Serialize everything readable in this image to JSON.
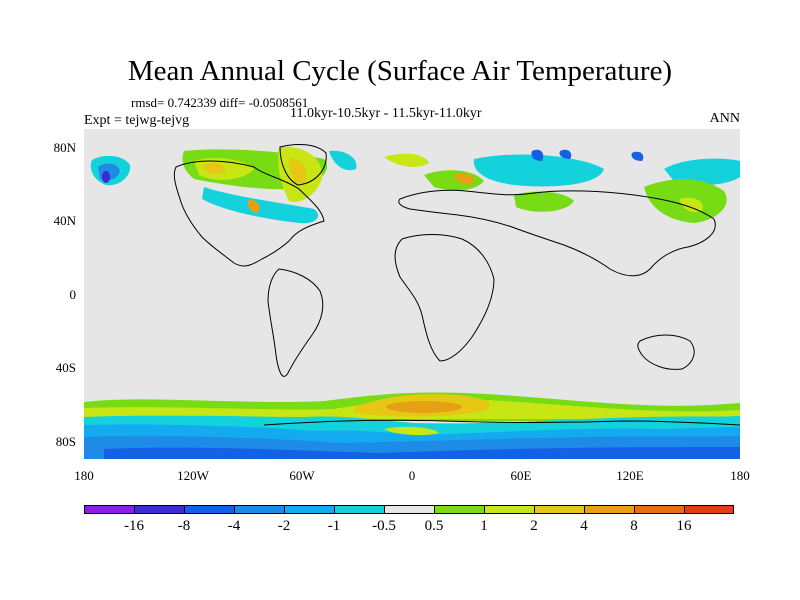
{
  "title": "Mean Annual Cycle (Surface Air Temperature)",
  "stats": "rmsd= 0.742339  diff= -0.0508561",
  "experiment": "Expt = tejwg-tejvg",
  "period": "11.0kyr-10.5kyr - 11.5kyr-11.0kyr",
  "season": "ANN",
  "map": {
    "projection": "cylindrical equidistant",
    "lat_range": [
      -90,
      90
    ],
    "lon_range": [
      -180,
      180
    ],
    "lat_ticks": [
      {
        "value": 80,
        "label": "80N"
      },
      {
        "value": 40,
        "label": "40N"
      },
      {
        "value": 0,
        "label": "0"
      },
      {
        "value": -40,
        "label": "40S"
      },
      {
        "value": -80,
        "label": "80S"
      }
    ],
    "lon_ticks": [
      {
        "value": -180,
        "label": "180"
      },
      {
        "value": -120,
        "label": "120W"
      },
      {
        "value": -60,
        "label": "60W"
      },
      {
        "value": 0,
        "label": "0"
      },
      {
        "value": 60,
        "label": "60E"
      },
      {
        "value": 120,
        "label": "120E"
      },
      {
        "value": 180,
        "label": "180"
      }
    ],
    "background_color": "#e6e6e6",
    "features": [
      "antarctic-cooling-band",
      "southern-ocean-warming-band",
      "arctic-mixed-anomalies",
      "north-atlantic-cooling",
      "eurasia-warming",
      "east-asia-warming"
    ]
  },
  "colorbar": {
    "labels": [
      "-16",
      "-8",
      "-4",
      "-2",
      "-1",
      "-0.5",
      "0.5",
      "1",
      "2",
      "4",
      "8",
      "16"
    ],
    "colors": [
      "#8c1ee6",
      "#3c2ad2",
      "#1460e6",
      "#1e8ce6",
      "#14aaf0",
      "#14d2dc",
      "#e6e6e6",
      "#78dc14",
      "#c8e614",
      "#e6c814",
      "#e6a014",
      "#e66e14",
      "#e63c14"
    ]
  }
}
